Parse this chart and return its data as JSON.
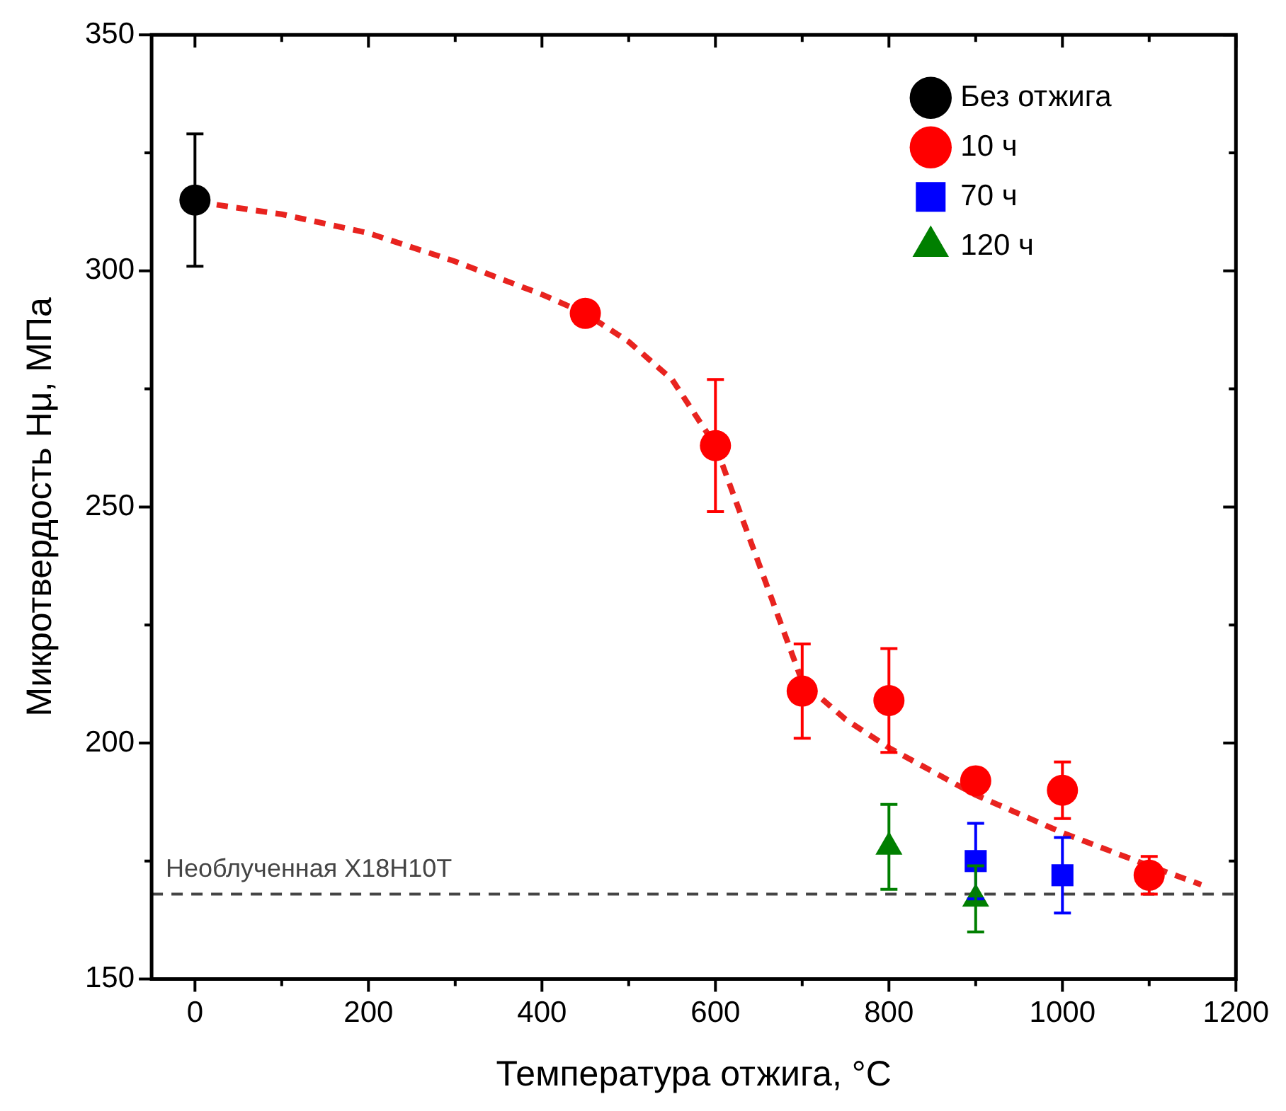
{
  "chart_data": {
    "type": "scatter",
    "xlabel": "Температура отжига, °C",
    "ylabel": "Микротвердость Hμ, МПа",
    "xlim": [
      -50,
      1200
    ],
    "xticks": [
      0,
      200,
      400,
      600,
      800,
      1000,
      1200
    ],
    "ylim": [
      150,
      350
    ],
    "yticks": [
      150,
      200,
      250,
      300,
      350
    ],
    "grid": false,
    "legend": "top right",
    "series": [
      {
        "name": "Без отжига",
        "color": "#000000",
        "marker": "circle",
        "x": [
          0
        ],
        "values": [
          315
        ],
        "errors": [
          14
        ]
      },
      {
        "name": "10 ч",
        "color": "#ff0000",
        "marker": "circle",
        "x": [
          450,
          600,
          700,
          800,
          900,
          1000,
          1100
        ],
        "values": [
          291,
          263,
          211,
          209,
          192,
          190,
          172
        ],
        "errors": [
          null,
          14,
          10,
          11,
          null,
          6,
          4
        ]
      },
      {
        "name": "70 ч",
        "color": "#0000ff",
        "marker": "square",
        "x": [
          900,
          1000
        ],
        "values": [
          175,
          172
        ],
        "errors": [
          8,
          8
        ]
      },
      {
        "name": "120 ч",
        "color": "#007f00",
        "marker": "triangle",
        "x": [
          800,
          900
        ],
        "values": [
          178,
          167
        ],
        "errors": [
          9,
          7
        ]
      },
      {
        "type": "line",
        "color": "#e8231f",
        "marker": "none",
        "line_style": "dashed",
        "x": [
          25,
          100,
          200,
          300,
          400,
          450,
          500,
          550,
          600,
          650,
          700,
          750,
          800,
          900,
          1000,
          1100,
          1160
        ],
        "values": [
          314,
          312,
          308,
          302,
          295,
          291,
          285,
          277,
          263,
          238,
          213,
          205,
          199,
          189,
          181,
          174,
          170
        ]
      }
    ],
    "ref_lines": [
      {
        "axis": "y",
        "value": 168,
        "label": "Необлученная Х18Н10Т",
        "color": "#444444",
        "line_style": "dashed"
      }
    ]
  }
}
